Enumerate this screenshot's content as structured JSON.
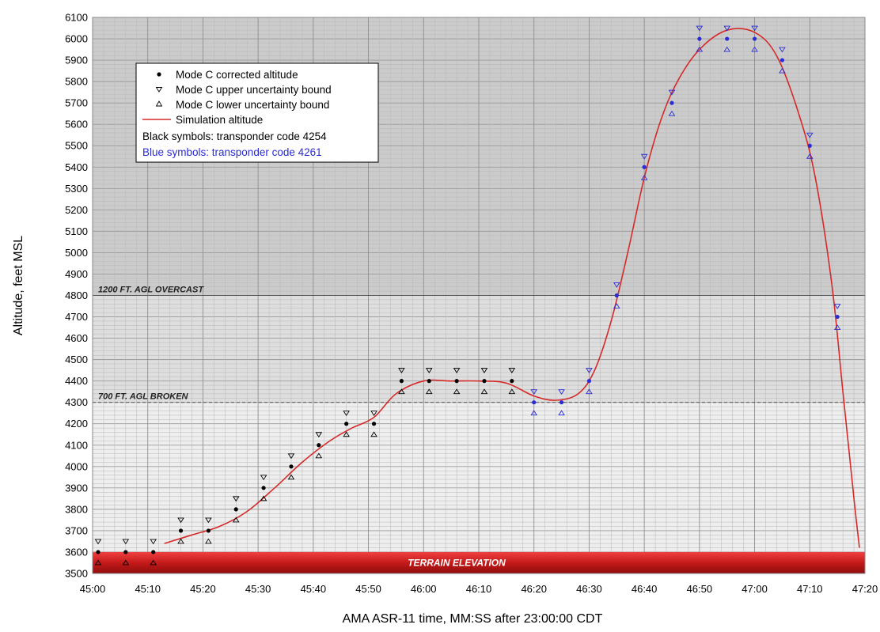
{
  "chart_data": {
    "type": "scatter",
    "title": "",
    "xlabel": "AMA ASR-11 time, MM:SS after 23:00:00 CDT",
    "ylabel": "Altitude, feet MSL",
    "xlim": [
      "45:00",
      "47:20"
    ],
    "ylim": [
      3500,
      6100
    ],
    "x_tick_labels": [
      "45:00",
      "45:10",
      "45:20",
      "45:30",
      "45:40",
      "45:50",
      "46:00",
      "46:10",
      "46:20",
      "46:30",
      "46:40",
      "46:50",
      "47:00",
      "47:10",
      "47:20"
    ],
    "y_ticks": [
      3500,
      3600,
      3700,
      3800,
      3900,
      4000,
      4100,
      4200,
      4300,
      4400,
      4500,
      4600,
      4700,
      4800,
      4900,
      5000,
      5100,
      5200,
      5300,
      5400,
      5500,
      5600,
      5700,
      5800,
      5900,
      6000,
      6100
    ],
    "grid": true,
    "legend": {
      "placement": "top-left",
      "entries": [
        "Mode C corrected altitude",
        "Mode C upper uncertainty bound",
        "Mode C lower uncertainty bound",
        "Simulation altitude"
      ],
      "notes": [
        "Black symbols: transponder code 4254",
        "Blue symbols: transponder code 4261"
      ]
    },
    "bands": [
      {
        "label": "1200 FT. AGL OVERCAST",
        "y": 4800
      },
      {
        "label": "700 FT. AGL BROKEN",
        "y": 4300
      },
      {
        "label": "TERRAIN ELEVATION",
        "y_from": 3500,
        "y_to": 3600
      }
    ],
    "series": [
      {
        "name": "Black symbols: transponder code 4254",
        "color": "#000000",
        "points": [
          {
            "t": "45:01",
            "alt": 3600
          },
          {
            "t": "45:06",
            "alt": 3600
          },
          {
            "t": "45:11",
            "alt": 3600
          },
          {
            "t": "45:16",
            "alt": 3700
          },
          {
            "t": "45:21",
            "alt": 3700
          },
          {
            "t": "45:26",
            "alt": 3800
          },
          {
            "t": "45:31",
            "alt": 3900
          },
          {
            "t": "45:36",
            "alt": 4000
          },
          {
            "t": "45:41",
            "alt": 4100
          },
          {
            "t": "45:46",
            "alt": 4200
          },
          {
            "t": "45:51",
            "alt": 4200
          },
          {
            "t": "45:56",
            "alt": 4400
          },
          {
            "t": "46:01",
            "alt": 4400
          },
          {
            "t": "46:06",
            "alt": 4400
          },
          {
            "t": "46:11",
            "alt": 4400
          },
          {
            "t": "46:16",
            "alt": 4400
          }
        ]
      },
      {
        "name": "Blue symbols: transponder code 4261",
        "color": "#2b2bd6",
        "points": [
          {
            "t": "46:20",
            "alt": 4300
          },
          {
            "t": "46:25",
            "alt": 4300
          },
          {
            "t": "46:30",
            "alt": 4400
          },
          {
            "t": "46:35",
            "alt": 4800
          },
          {
            "t": "46:40",
            "alt": 5400
          },
          {
            "t": "46:45",
            "alt": 5700
          },
          {
            "t": "46:50",
            "alt": 6000
          },
          {
            "t": "46:55",
            "alt": 6000
          },
          {
            "t": "47:00",
            "alt": 6000
          },
          {
            "t": "47:05",
            "alt": 5900
          },
          {
            "t": "47:10",
            "alt": 5500
          },
          {
            "t": "47:15",
            "alt": 4700
          }
        ]
      }
    ],
    "uncertainty": 50,
    "simulation_altitude": {
      "name": "Simulation altitude",
      "color": "#d62a2a",
      "points": [
        {
          "t": "45:13",
          "alt": 3640
        },
        {
          "t": "45:18",
          "alt": 3680
        },
        {
          "t": "45:23",
          "alt": 3720
        },
        {
          "t": "45:28",
          "alt": 3790
        },
        {
          "t": "45:33",
          "alt": 3900
        },
        {
          "t": "45:38",
          "alt": 4020
        },
        {
          "t": "45:43",
          "alt": 4120
        },
        {
          "t": "45:47",
          "alt": 4180
        },
        {
          "t": "45:51",
          "alt": 4230
        },
        {
          "t": "45:55",
          "alt": 4340
        },
        {
          "t": "46:00",
          "alt": 4400
        },
        {
          "t": "46:05",
          "alt": 4400
        },
        {
          "t": "46:10",
          "alt": 4400
        },
        {
          "t": "46:15",
          "alt": 4390
        },
        {
          "t": "46:20",
          "alt": 4330
        },
        {
          "t": "46:24",
          "alt": 4310
        },
        {
          "t": "46:28",
          "alt": 4340
        },
        {
          "t": "46:31",
          "alt": 4450
        },
        {
          "t": "46:34",
          "alt": 4680
        },
        {
          "t": "46:37",
          "alt": 5000
        },
        {
          "t": "46:40",
          "alt": 5350
        },
        {
          "t": "46:43",
          "alt": 5620
        },
        {
          "t": "46:46",
          "alt": 5800
        },
        {
          "t": "46:50",
          "alt": 5950
        },
        {
          "t": "46:55",
          "alt": 6040
        },
        {
          "t": "47:00",
          "alt": 6030
        },
        {
          "t": "47:04",
          "alt": 5920
        },
        {
          "t": "47:08",
          "alt": 5650
        },
        {
          "t": "47:11",
          "alt": 5350
        },
        {
          "t": "47:14",
          "alt": 4850
        },
        {
          "t": "47:16",
          "alt": 4350
        },
        {
          "t": "47:18",
          "alt": 3850
        },
        {
          "t": "47:19",
          "alt": 3620
        }
      ]
    }
  }
}
